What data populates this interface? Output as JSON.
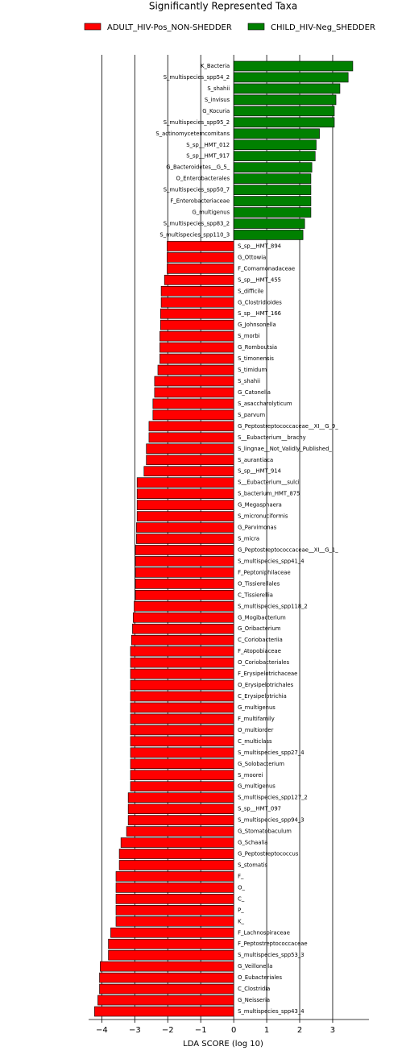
{
  "chart_data": {
    "type": "bar",
    "orientation": "horizontal",
    "title": "Significantly Represented Taxa",
    "x_label": "LDA SCORE (log 10)",
    "categories": [
      "K_Bacteria",
      "S_multispecies_spp54_2",
      "S_shahii",
      "S_invisus",
      "G_Kocuria",
      "S_multispecies_spp95_2",
      "S_actinomycetemcomitans",
      "S_sp__HMT_012",
      "S_sp__HMT_917",
      "G_Bacteroidetes__G_5_",
      "O_Enterobacterales",
      "S_multispecies_spp50_7",
      "F_Enterobacteriaceae",
      "G_multigenus",
      "S_multispecies_spp83_2",
      "S_multispecies_spp110_3",
      "S_sp__HMT_894",
      "G_Ottowia",
      "F_Comamonadaceae",
      "S_sp__HMT_455",
      "S_difficile",
      "G_Clostridioides",
      "S_sp__HMT_166",
      "G_Johnsonella",
      "S_morbi",
      "G_Romboutsia",
      "S_timonensis",
      "S_timidum",
      "S_shahii",
      "G_Catonella",
      "S_asaccharolyticum",
      "S_parvum",
      "G_Peptostreptococcaceae__XI__G_9_",
      "S__Eubacterium__brachy",
      "S_lingnae__Not_Validly_Published_",
      "S_aurantiaca",
      "S_sp__HMT_914",
      "S__Eubacterium__sulci",
      "S_bacterium_HMT_875",
      "G_Megasphaera",
      "S_micronuciformis",
      "G_Parvimonas",
      "S_micra",
      "G_Peptostreptococcaceae__XI__G_1_",
      "S_multispecies_spp41_4",
      "F_Peptoniphilaceae",
      "O_Tissierellales",
      "C_Tissierellia",
      "S_multispecies_spp118_2",
      "G_Mogibacterium",
      "G_Oribacterium",
      "C_Coriobacteriia",
      "F_Atopobiaceae",
      "O_Coriobacteriales",
      "F_Erysipelotrichaceae",
      "O_Erysipelotrichales",
      "C_Erysipelotrichia",
      "G_multigenus",
      "F_multifamily",
      "O_multiorder",
      "C_multiclass",
      "S_multispecies_spp27_4",
      "G_Solobacterium",
      "S_moorei",
      "G_multigenus",
      "S_multispecies_spp127_2",
      "S_sp__HMT_097",
      "S_multispecies_spp94_3",
      "G_Stomatobaculum",
      "G_Schaalia",
      "G_Peptostreptococcus",
      "S_stomatis",
      "F_",
      "O_",
      "C_",
      "P_",
      "K_",
      "F_Lachnospiraceae",
      "F_Peptostreptococcaceae",
      "S_multispecies_spp53_3",
      "G_Veillonella",
      "O_Eubacteriales",
      "C_Clostridia",
      "G_Neisseria",
      "S_multispecies_spp43_4"
    ],
    "series": [
      {
        "name": "ADULT_HIV-Pos_NON-SHEDDER",
        "color": "#ff0000",
        "values": [
          null,
          null,
          null,
          null,
          null,
          null,
          null,
          null,
          null,
          null,
          null,
          null,
          null,
          null,
          null,
          null,
          -2.02,
          -2.02,
          -2.02,
          -2.1,
          -2.2,
          -2.2,
          -2.22,
          -2.22,
          -2.24,
          -2.24,
          -2.24,
          -2.3,
          -2.4,
          -2.4,
          -2.45,
          -2.45,
          -2.57,
          -2.57,
          -2.65,
          -2.65,
          -2.72,
          -2.93,
          -2.93,
          -2.93,
          -2.93,
          -2.95,
          -2.95,
          -2.98,
          -2.98,
          -2.98,
          -2.98,
          -2.98,
          -3.02,
          -3.05,
          -3.07,
          -3.1,
          -3.13,
          -3.13,
          -3.13,
          -3.13,
          -3.13,
          -3.13,
          -3.13,
          -3.13,
          -3.13,
          -3.13,
          -3.13,
          -3.13,
          -3.13,
          -3.2,
          -3.2,
          -3.2,
          -3.25,
          -3.42,
          -3.47,
          -3.47,
          -3.57,
          -3.57,
          -3.57,
          -3.57,
          -3.57,
          -3.73,
          -3.8,
          -3.8,
          -4.05,
          -4.07,
          -4.07,
          -4.12,
          -4.22
        ]
      },
      {
        "name": "CHILD_HIV-Neg_SHEDDER",
        "color": "#008000",
        "values": [
          3.61,
          3.47,
          3.22,
          3.1,
          3.05,
          3.05,
          2.6,
          2.5,
          2.47,
          2.37,
          2.34,
          2.34,
          2.34,
          2.34,
          2.15,
          2.1,
          null,
          null,
          null,
          null,
          null,
          null,
          null,
          null,
          null,
          null,
          null,
          null,
          null,
          null,
          null,
          null,
          null,
          null,
          null,
          null,
          null,
          null,
          null,
          null,
          null,
          null,
          null,
          null,
          null,
          null,
          null,
          null,
          null,
          null,
          null,
          null,
          null,
          null,
          null,
          null,
          null,
          null,
          null,
          null,
          null,
          null,
          null,
          null,
          null,
          null,
          null,
          null,
          null,
          null,
          null,
          null,
          null,
          null,
          null,
          null,
          null,
          null,
          null,
          null,
          null,
          null,
          null,
          null,
          null
        ]
      }
    ],
    "xlim": [
      -4.4,
      4.1
    ],
    "xticks": [
      {
        "value": -4,
        "label": "−4"
      },
      {
        "value": -3,
        "label": "−3"
      },
      {
        "value": -2,
        "label": "−2"
      },
      {
        "value": -1,
        "label": "−1"
      },
      0,
      1,
      2,
      3
    ],
    "grid": true
  }
}
